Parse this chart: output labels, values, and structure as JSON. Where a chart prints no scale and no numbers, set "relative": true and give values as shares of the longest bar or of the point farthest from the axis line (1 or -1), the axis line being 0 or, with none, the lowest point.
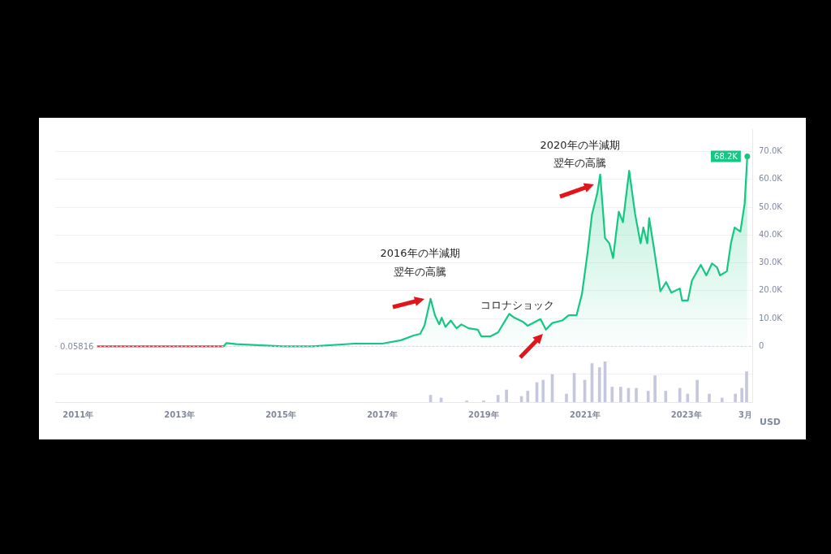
{
  "chart_data": [
    {
      "type": "line",
      "ylabel": "USD",
      "grid": "y",
      "legend": false,
      "xlim": [
        "2010-07-20",
        "2024-04-20"
      ],
      "xticks": [
        {
          "value": "2011",
          "label": "2011年"
        },
        {
          "value": "2013",
          "label": "2013年"
        },
        {
          "value": "2015",
          "label": "2015年"
        },
        {
          "value": "2017",
          "label": "2017年"
        },
        {
          "value": "2019",
          "label": "2019年"
        },
        {
          "value": "2021",
          "label": "2021年"
        },
        {
          "value": "2023",
          "label": "2023年"
        },
        {
          "value": "2024-03-01",
          "label": "3月"
        }
      ],
      "ylim": [
        -20000,
        78000
      ],
      "yticks": [
        {
          "value": -10000,
          "label": null
        },
        0,
        {
          "value": 10000,
          "label": "10.0K"
        },
        {
          "value": 20000,
          "label": "20.0K"
        },
        {
          "value": 30000,
          "label": "30.0K"
        },
        {
          "value": 40000,
          "label": "40.0K"
        },
        {
          "value": 50000,
          "label": "50.0K"
        },
        {
          "value": 60000,
          "label": "60.0K"
        },
        {
          "value": 70000,
          "label": "70.0K"
        }
      ],
      "ref_lines": [
        {
          "axis": "y",
          "value": 0.05816,
          "label": "0.05816",
          "color": "#cfd3dc",
          "line_style": "dotted"
        }
      ],
      "series": [
        {
          "type": "line",
          "color": "#ea3943",
          "x": [
            "2011-05-07",
            "2013-11-15"
          ],
          "values": [
            0,
            0
          ]
        },
        {
          "type": "area",
          "color": "#16c784",
          "x": [
            "2013-11-15",
            "2013-12-05",
            "2014-02-15",
            "2015-01-15",
            "2015-08-15",
            "2016-06-15",
            "2017-01-01",
            "2017-05-15",
            "2017-08-20",
            "2017-10-01",
            "2017-11-01",
            "2017-12-15",
            "2018-01-15",
            "2018-02-15",
            "2018-03-05",
            "2018-04-01",
            "2018-05-10",
            "2018-06-20",
            "2018-07-25",
            "2018-09-15",
            "2018-11-20",
            "2018-12-15",
            "2019-02-20",
            "2019-04-15",
            "2019-07-05",
            "2019-08-10",
            "2019-10-10",
            "2019-11-15",
            "2020-02-15",
            "2020-03-25",
            "2020-05-10",
            "2020-07-20",
            "2020-09-05",
            "2020-11-01",
            "2020-12-10",
            "2021-01-20",
            "2021-02-20",
            "2021-03-30",
            "2021-04-20",
            "2021-05-25",
            "2021-06-25",
            "2021-07-22",
            "2021-09-01",
            "2021-10-01",
            "2021-11-15",
            "2021-12-28",
            "2022-02-05",
            "2022-02-25",
            "2022-03-25",
            "2022-04-08",
            "2022-05-10",
            "2022-06-28",
            "2022-08-08",
            "2022-09-15",
            "2022-11-15",
            "2022-12-01",
            "2023-01-12",
            "2023-02-10",
            "2023-04-15",
            "2023-05-25",
            "2023-07-05",
            "2023-08-10",
            "2023-09-01",
            "2023-10-20",
            "2023-11-18",
            "2023-12-15",
            "2024-01-25",
            "2024-02-25",
            "2024-03-15"
          ],
          "values": [
            0,
            1200,
            800,
            0,
            0,
            1000,
            1000,
            2200,
            4000,
            4500,
            7500,
            17100,
            11200,
            7900,
            10300,
            7000,
            9300,
            6500,
            7900,
            6500,
            6000,
            3600,
            3600,
            5000,
            11700,
            10300,
            8900,
            7400,
            9800,
            6000,
            8400,
            9300,
            11200,
            11200,
            18900,
            34000,
            47400,
            55000,
            61700,
            38900,
            37000,
            31700,
            48400,
            44600,
            63100,
            47400,
            37000,
            42700,
            37000,
            46000,
            36000,
            19800,
            23100,
            19300,
            20800,
            16500,
            16500,
            23600,
            29300,
            25500,
            29800,
            28400,
            25500,
            27000,
            37000,
            42700,
            41200,
            51200,
            68200
          ]
        }
      ],
      "annotations": [
        {
          "text": "2016年の半減期翌年の高騰",
          "x": "2017-12-15",
          "y": 17100
        },
        {
          "text": "コロナショック",
          "x": "2020-03-25",
          "y": 6000
        },
        {
          "text": "2020年の半減期翌年の高騰",
          "x": "2021-04-20",
          "y": 61700
        },
        {
          "text": "68.2K",
          "x": "2024-03-15",
          "y": 68200
        }
      ]
    },
    {
      "type": "bar",
      "relative": true,
      "color": "#c5c8dc",
      "xlim": [
        "2010-07-20",
        "2024-04-20"
      ],
      "x": [
        "2017-12-15",
        "2018-03-01",
        "2018-09-01",
        "2019-01-01",
        "2019-04-15",
        "2019-06-15",
        "2019-10-01",
        "2019-11-15",
        "2020-01-20",
        "2020-03-05",
        "2020-05-10",
        "2020-08-20",
        "2020-10-15",
        "2020-12-30",
        "2021-02-20",
        "2021-04-15",
        "2021-05-25",
        "2021-07-15",
        "2021-09-15",
        "2021-11-10",
        "2022-01-05",
        "2022-04-01",
        "2022-05-20",
        "2022-08-05",
        "2022-11-15",
        "2023-01-10",
        "2023-03-20",
        "2023-06-15",
        "2023-09-15",
        "2023-12-20",
        "2024-02-05",
        "2024-03-10"
      ],
      "values": [
        0.17,
        0.1,
        0.03,
        0.03,
        0.17,
        0.3,
        0.14,
        0.27,
        0.48,
        0.54,
        0.68,
        0.2,
        0.71,
        0.54,
        0.95,
        0.85,
        1,
        0.37,
        0.37,
        0.34,
        0.34,
        0.27,
        0.65,
        0.27,
        0.34,
        0.2,
        0.54,
        0.2,
        0.1,
        0.2,
        0.34,
        0.75
      ]
    }
  ]
}
